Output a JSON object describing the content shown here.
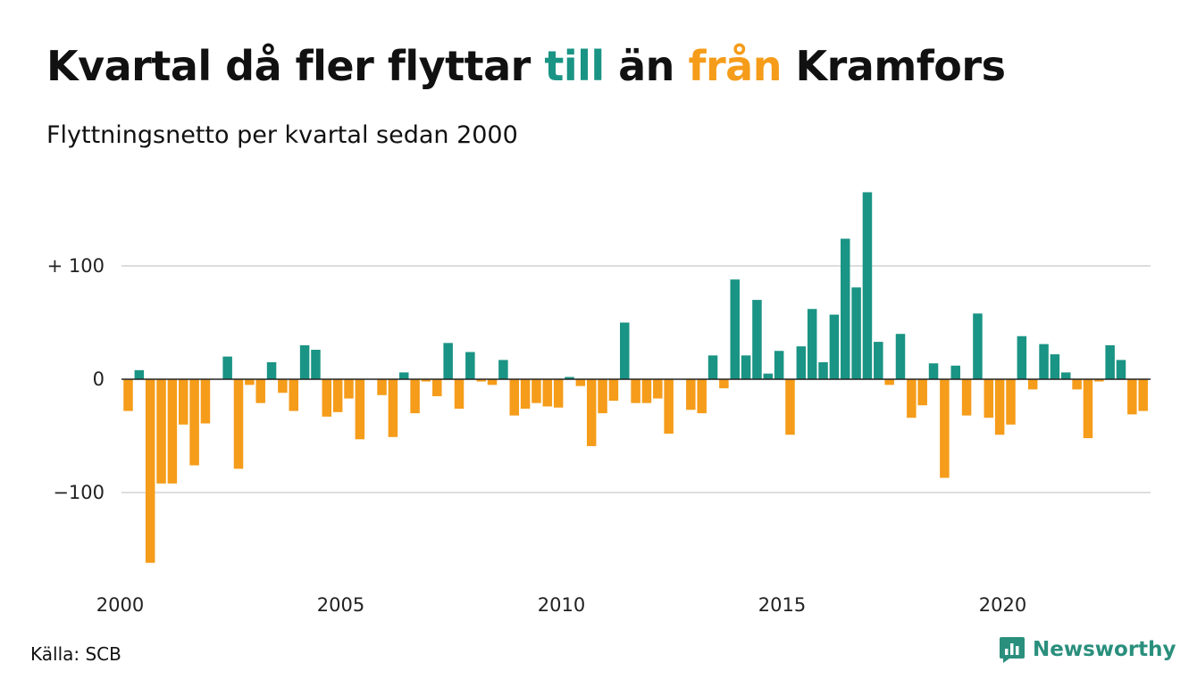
{
  "header": {
    "title_part1": "Kvartal då fler flyttar ",
    "title_till": "till",
    "title_part2": " än ",
    "title_fran": "från",
    "title_part3": " Kramfors",
    "subtitle": "Flyttningsnetto per kvartal sedan 2000"
  },
  "footer": {
    "source": "Källa: SCB",
    "brand": "Newsworthy"
  },
  "colors": {
    "positive": "#1a9484",
    "negative": "#f59c1a",
    "grid": "#dddddd",
    "zero_line": "#222222"
  },
  "chart_data": {
    "type": "bar",
    "title": "Kvartal då fler flyttar till än från Kramfors",
    "subtitle": "Flyttningsnetto per kvartal sedan 2000",
    "xlabel": "",
    "ylabel": "",
    "ylim": [
      -170,
      170
    ],
    "y_ticks": [
      {
        "value": 100,
        "label": "+ 100"
      },
      {
        "value": 0,
        "label": "0"
      },
      {
        "value": -100,
        "label": "−100"
      }
    ],
    "x_ticks": [
      {
        "year": 2000,
        "label": "2000"
      },
      {
        "year": 2005,
        "label": "2005"
      },
      {
        "year": 2010,
        "label": "2010"
      },
      {
        "year": 2015,
        "label": "2015"
      },
      {
        "year": 2020,
        "label": "2020"
      }
    ],
    "start_year": 2000,
    "values": [
      -28,
      8,
      -162,
      -92,
      -92,
      -40,
      -76,
      -39,
      0,
      20,
      -79,
      -5,
      -21,
      15,
      -12,
      -28,
      30,
      26,
      -33,
      -29,
      -17,
      -53,
      0,
      -14,
      -51,
      6,
      -30,
      -2,
      -15,
      32,
      -26,
      24,
      -2,
      -5,
      17,
      -32,
      -26,
      -21,
      -24,
      -25,
      2,
      -6,
      -59,
      -30,
      -19,
      50,
      -21,
      -21,
      -17,
      -48,
      0,
      -27,
      -30,
      21,
      -8,
      88,
      21,
      70,
      5,
      25,
      -49,
      29,
      62,
      15,
      57,
      124,
      81,
      165,
      33,
      -5,
      40,
      -34,
      -23,
      14,
      -87,
      12,
      -32,
      58,
      -34,
      -49,
      -40,
      38,
      -9,
      31,
      22,
      6,
      -9,
      -52,
      -2,
      30,
      17,
      -31,
      -28
    ],
    "grid": true,
    "legend": "none"
  }
}
